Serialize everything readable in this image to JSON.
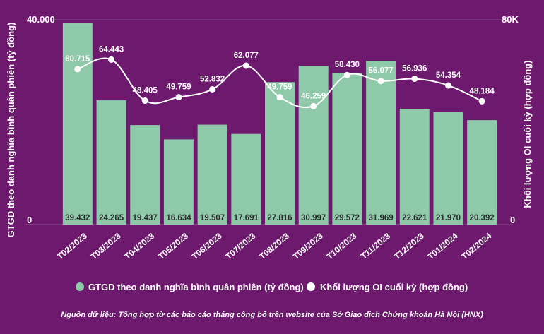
{
  "chart_data": {
    "type": "bar+line",
    "categories": [
      "T02/2023",
      "T03/2023",
      "T04/2023",
      "T05/2023",
      "T06/2023",
      "T07/2023",
      "T08/2023",
      "T09/2023",
      "T10/2023",
      "T11/2023",
      "T12/2023",
      "T01/2024",
      "T02/2024"
    ],
    "series": [
      {
        "name": "GTGD theo danh nghĩa bình quân phiên (tỷ đồng)",
        "type": "bar",
        "axis": "left",
        "values": [
          39432,
          24265,
          19437,
          16634,
          19507,
          17691,
          27816,
          30997,
          29572,
          31969,
          22621,
          21970,
          20392
        ],
        "labels": [
          "39.432",
          "24.265",
          "19.437",
          "16.634",
          "19.507",
          "17.691",
          "27.816",
          "30.997",
          "29.572",
          "31.969",
          "22.621",
          "21.970",
          "20.392"
        ],
        "color": "#8ecaa9"
      },
      {
        "name": "Khối lượng OI cuối kỳ (hợp đồng)",
        "type": "line",
        "axis": "right",
        "values": [
          60715,
          64443,
          48405,
          49759,
          52832,
          62077,
          49759,
          46259,
          58430,
          56077,
          56936,
          54354,
          48184
        ],
        "labels": [
          "60.715",
          "64.443",
          "48.405",
          "49.759",
          "52.832",
          "62.077",
          "49.759",
          "46.259",
          "58.430",
          "56.077",
          "56.936",
          "54.354",
          "48.184"
        ],
        "color": "#ffffff"
      }
    ],
    "y_left": {
      "min": 0,
      "max": 40000,
      "min_label": "0",
      "max_label": "40.000",
      "label": "GTGD theo danh nghĩa bình quân phiên (tỷ đồng)"
    },
    "y_right": {
      "min": 0,
      "max": 80000,
      "min_label": "0",
      "max_label": "80K",
      "label": "Khối lượng OI cuối kỳ (hợp đồng)"
    },
    "legend_position": "bottom",
    "source": "Nguồn dữ liệu: Tổng hợp từ các báo cáo tháng công bố trên website của Sở Giao dịch Chứng khoán Hà Nội (HNX)"
  },
  "colors": {
    "background": "#6d1a6e",
    "bar": "#8ecaa9",
    "line": "#ffffff",
    "bar_label": "#2a2a2a",
    "gridline": "#8a4b8b"
  }
}
